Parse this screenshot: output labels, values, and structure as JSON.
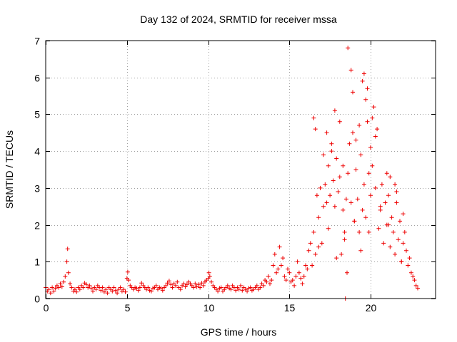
{
  "chart_data": {
    "type": "scatter",
    "title": "Day 132 of 2024, SRMTID for receiver mssa",
    "xlabel": "GPS time / hours",
    "ylabel": "SRMTID / TECUs",
    "xlim": [
      0,
      24
    ],
    "ylim": [
      0,
      7
    ],
    "xticks": [
      0,
      5,
      10,
      15,
      20
    ],
    "yticks": [
      0,
      1,
      2,
      3,
      4,
      5,
      6,
      7
    ],
    "xtick_labels": [
      "0",
      "5",
      "10",
      "15",
      "20"
    ],
    "ytick_labels": [
      "0",
      "1",
      "2",
      "3",
      "4",
      "5",
      "6",
      "7"
    ],
    "grid": true,
    "marker": "+",
    "color": "#ee0000",
    "series": [
      {
        "name": "SRMTID",
        "x": [
          0.0,
          0.1,
          0.2,
          0.3,
          0.4,
          0.5,
          0.6,
          0.7,
          0.8,
          0.9,
          1.0,
          1.1,
          1.2,
          1.3,
          1.35,
          1.4,
          1.5,
          1.6,
          1.7,
          1.8,
          1.9,
          2.0,
          2.1,
          2.2,
          2.3,
          2.4,
          2.5,
          2.6,
          2.7,
          2.8,
          2.9,
          3.0,
          3.1,
          3.2,
          3.3,
          3.4,
          3.5,
          3.6,
          3.7,
          3.8,
          3.9,
          4.0,
          4.1,
          4.2,
          4.3,
          4.4,
          4.5,
          4.6,
          4.7,
          4.8,
          4.9,
          5.0,
          5.05,
          5.1,
          5.2,
          5.3,
          5.4,
          5.5,
          5.6,
          5.7,
          5.8,
          5.9,
          6.0,
          6.1,
          6.2,
          6.3,
          6.4,
          6.5,
          6.6,
          6.7,
          6.8,
          6.9,
          7.0,
          7.1,
          7.2,
          7.3,
          7.4,
          7.5,
          7.6,
          7.7,
          7.8,
          7.9,
          8.0,
          8.1,
          8.2,
          8.3,
          8.4,
          8.5,
          8.6,
          8.7,
          8.8,
          8.9,
          9.0,
          9.1,
          9.2,
          9.3,
          9.4,
          9.5,
          9.6,
          9.7,
          9.8,
          9.9,
          10.0,
          10.05,
          10.1,
          10.2,
          10.3,
          10.4,
          10.5,
          10.6,
          10.7,
          10.8,
          10.9,
          11.0,
          11.1,
          11.2,
          11.3,
          11.4,
          11.5,
          11.6,
          11.7,
          11.8,
          11.9,
          12.0,
          12.1,
          12.2,
          12.3,
          12.4,
          12.5,
          12.6,
          12.7,
          12.8,
          12.9,
          13.0,
          13.1,
          13.2,
          13.3,
          13.4,
          13.5,
          13.6,
          13.7,
          13.8,
          13.9,
          14.0,
          14.1,
          14.2,
          14.3,
          14.4,
          14.5,
          14.6,
          14.7,
          14.8,
          14.9,
          15.0,
          15.1,
          15.2,
          15.3,
          15.4,
          15.5,
          15.6,
          15.7,
          15.8,
          15.9,
          16.0,
          16.1,
          16.2,
          16.3,
          16.4,
          16.5,
          16.6,
          16.7,
          16.8,
          16.9,
          17.0,
          17.1,
          17.2,
          17.3,
          17.4,
          17.5,
          17.6,
          17.7,
          17.8,
          17.9,
          18.0,
          18.1,
          18.2,
          18.3,
          18.4,
          18.5,
          18.6,
          18.7,
          18.8,
          18.9,
          19.0,
          19.1,
          19.2,
          19.3,
          19.4,
          19.5,
          19.6,
          19.7,
          19.8,
          19.9,
          20.0,
          20.1,
          20.2,
          20.3,
          20.4,
          20.5,
          20.6,
          20.7,
          20.8,
          20.9,
          21.0,
          21.1,
          21.2,
          21.3,
          21.4,
          21.5,
          21.6,
          21.7,
          21.8,
          21.9,
          22.0,
          22.1,
          22.2,
          22.3,
          22.4,
          22.5,
          22.6,
          22.7,
          22.8,
          22.9,
          16.5,
          16.6,
          17.1,
          17.3,
          17.6,
          17.8,
          18.1,
          18.3,
          18.6,
          18.8,
          18.9,
          19.1,
          19.3,
          19.5,
          19.6,
          19.7,
          19.8,
          20.0,
          20.1,
          20.3,
          21.0,
          21.2,
          21.5,
          21.6,
          22.0,
          16.8,
          17.4,
          17.9,
          18.4,
          19.0,
          19.4,
          19.9,
          20.6,
          21.1,
          21.9,
          18.55,
          18.45
        ],
        "y": [
          0.3,
          0.2,
          0.25,
          0.15,
          0.3,
          0.2,
          0.28,
          0.35,
          0.3,
          0.4,
          0.32,
          0.45,
          0.6,
          1.0,
          1.35,
          0.7,
          0.4,
          0.3,
          0.2,
          0.25,
          0.18,
          0.3,
          0.25,
          0.35,
          0.3,
          0.42,
          0.38,
          0.3,
          0.35,
          0.28,
          0.2,
          0.3,
          0.25,
          0.35,
          0.3,
          0.22,
          0.3,
          0.18,
          0.25,
          0.15,
          0.3,
          0.25,
          0.2,
          0.3,
          0.22,
          0.15,
          0.25,
          0.3,
          0.2,
          0.25,
          0.18,
          0.55,
          0.72,
          0.5,
          0.35,
          0.3,
          0.25,
          0.3,
          0.28,
          0.22,
          0.3,
          0.42,
          0.35,
          0.3,
          0.25,
          0.3,
          0.22,
          0.2,
          0.28,
          0.3,
          0.35,
          0.25,
          0.3,
          0.28,
          0.22,
          0.3,
          0.35,
          0.42,
          0.48,
          0.38,
          0.3,
          0.4,
          0.35,
          0.45,
          0.3,
          0.25,
          0.35,
          0.4,
          0.32,
          0.38,
          0.45,
          0.4,
          0.35,
          0.3,
          0.4,
          0.32,
          0.38,
          0.3,
          0.42,
          0.35,
          0.45,
          0.5,
          0.55,
          0.7,
          0.6,
          0.45,
          0.35,
          0.3,
          0.25,
          0.2,
          0.28,
          0.3,
          0.2,
          0.25,
          0.3,
          0.35,
          0.28,
          0.25,
          0.35,
          0.3,
          0.22,
          0.3,
          0.25,
          0.35,
          0.22,
          0.3,
          0.25,
          0.2,
          0.28,
          0.3,
          0.22,
          0.25,
          0.3,
          0.35,
          0.25,
          0.3,
          0.4,
          0.35,
          0.5,
          0.45,
          0.6,
          0.4,
          0.5,
          0.9,
          1.2,
          0.7,
          0.8,
          1.4,
          0.9,
          1.1,
          0.6,
          0.5,
          0.8,
          0.7,
          0.45,
          0.5,
          0.35,
          0.6,
          1.0,
          0.7,
          0.55,
          0.4,
          0.6,
          0.9,
          0.8,
          1.3,
          1.5,
          0.9,
          1.8,
          1.2,
          2.8,
          2.2,
          3.0,
          1.5,
          2.5,
          3.1,
          2.6,
          3.6,
          2.8,
          4.0,
          3.2,
          2.5,
          3.8,
          2.9,
          3.3,
          1.2,
          2.4,
          1.8,
          2.7,
          3.4,
          4.2,
          2.6,
          4.5,
          2.1,
          3.5,
          2.7,
          1.8,
          3.9,
          2.4,
          3.1,
          2.2,
          4.8,
          3.4,
          2.8,
          3.6,
          5.2,
          3.0,
          4.6,
          1.9,
          2.5,
          3.1,
          1.5,
          2.6,
          2.0,
          2.8,
          1.4,
          2.2,
          1.8,
          1.2,
          2.6,
          1.6,
          2.1,
          1.0,
          1.5,
          1.8,
          1.3,
          0.9,
          1.1,
          0.7,
          0.6,
          0.5,
          0.35,
          0.28,
          4.9,
          4.6,
          3.9,
          4.5,
          4.2,
          5.1,
          4.8,
          3.6,
          6.8,
          6.2,
          5.6,
          4.3,
          4.7,
          5.9,
          6.1,
          5.4,
          5.7,
          4.1,
          4.9,
          4.4,
          3.4,
          3.3,
          3.1,
          2.9,
          2.3,
          1.4,
          1.9,
          1.1,
          1.6,
          2.1,
          1.3,
          1.8,
          2.4,
          2.0,
          1.0,
          0.7,
          0.0
        ]
      }
    ]
  }
}
